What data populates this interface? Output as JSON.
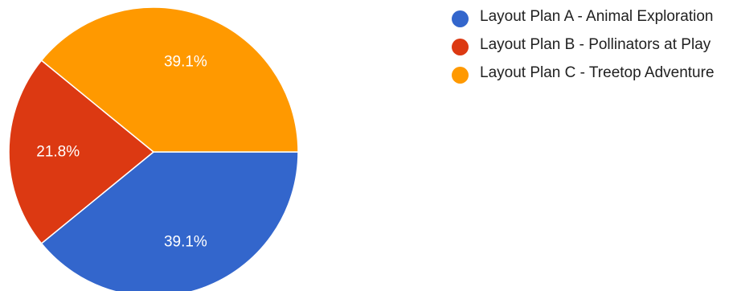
{
  "chart_data": {
    "type": "pie",
    "slices": [
      {
        "label": "Layout Plan A - Animal Exploration",
        "value": 39.1,
        "display": "39.1%",
        "color": "#3366cc"
      },
      {
        "label": "Layout Plan B - Pollinators at Play",
        "value": 21.8,
        "display": "21.8%",
        "color": "#dc3912"
      },
      {
        "label": "Layout Plan C - Treetop Adventure",
        "value": 39.1,
        "display": "39.1%",
        "color": "#ff9900"
      }
    ],
    "legend_position": "right"
  }
}
